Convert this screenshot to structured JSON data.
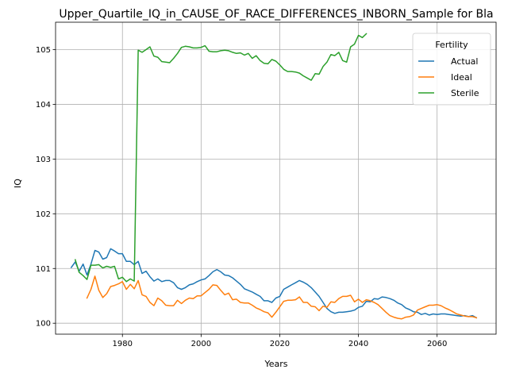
{
  "chart_data": {
    "type": "line",
    "title": "Upper_Quartile_IQ_in_CAUSE_OF_RACE_DIFFERENCES_INBORN_Sample for Bla",
    "xlabel": "Years",
    "ylabel": "IQ",
    "xlim": [
      1963,
      2075
    ],
    "ylim": [
      99.8,
      105.5
    ],
    "xticks": [
      1980,
      2000,
      2020,
      2040,
      2060
    ],
    "yticks": [
      100,
      101,
      102,
      103,
      104,
      105
    ],
    "grid": true,
    "legend": {
      "title": "Fertility",
      "position": "top-right"
    },
    "series": [
      {
        "name": "Actual",
        "color": "#1f77b4",
        "x": [
          1967,
          1968,
          1969,
          1970,
          1971,
          1972,
          1973,
          1974,
          1975,
          1976,
          1977,
          1978,
          1979,
          1980,
          1981,
          1982,
          1983,
          1984,
          1985,
          1986,
          1987,
          1988,
          1989,
          1990,
          1991,
          1992,
          1993,
          1994,
          1995,
          1996,
          1997,
          1998,
          1999,
          2000,
          2001,
          2002,
          2003,
          2004,
          2005,
          2006,
          2007,
          2008,
          2009,
          2010,
          2011,
          2012,
          2013,
          2014,
          2015,
          2016,
          2017,
          2018,
          2019,
          2020,
          2021,
          2022,
          2023,
          2024,
          2025,
          2026,
          2027,
          2028,
          2029,
          2030,
          2031,
          2032,
          2033,
          2034,
          2035,
          2036,
          2037,
          2038,
          2039,
          2040,
          2041,
          2042,
          2043,
          2044,
          2045,
          2046,
          2047,
          2048,
          2049,
          2050,
          2051,
          2052,
          2053,
          2054,
          2055,
          2056,
          2057,
          2058,
          2059,
          2060,
          2061,
          2062,
          2063,
          2064,
          2065,
          2066,
          2067,
          2068,
          2069,
          2070
        ],
        "values": [
          101.02,
          101.12,
          100.95,
          101.08,
          100.88,
          101.08,
          101.33,
          101.3,
          101.17,
          101.2,
          101.36,
          101.32,
          101.27,
          101.27,
          101.13,
          101.13,
          101.07,
          101.13,
          100.91,
          100.95,
          100.85,
          100.77,
          100.81,
          100.76,
          100.78,
          100.78,
          100.74,
          100.65,
          100.62,
          100.65,
          100.7,
          100.72,
          100.76,
          100.79,
          100.81,
          100.87,
          100.94,
          100.98,
          100.94,
          100.88,
          100.87,
          100.83,
          100.77,
          100.71,
          100.63,
          100.6,
          100.57,
          100.53,
          100.49,
          100.41,
          100.41,
          100.38,
          100.46,
          100.49,
          100.62,
          100.66,
          100.7,
          100.74,
          100.78,
          100.75,
          100.71,
          100.65,
          100.57,
          100.49,
          100.38,
          100.27,
          100.21,
          100.18,
          100.2,
          100.2,
          100.21,
          100.22,
          100.24,
          100.29,
          100.31,
          100.4,
          100.39,
          100.45,
          100.44,
          100.48,
          100.47,
          100.45,
          100.42,
          100.37,
          100.34,
          100.28,
          100.25,
          100.21,
          100.2,
          100.16,
          100.18,
          100.15,
          100.17,
          100.16,
          100.17,
          100.17,
          100.16,
          100.15,
          100.14,
          100.13,
          100.14,
          100.12,
          100.14,
          100.1
        ]
      },
      {
        "name": "Ideal",
        "color": "#ff7f0e",
        "x": [
          1971,
          1972,
          1973,
          1974,
          1975,
          1976,
          1977,
          1978,
          1979,
          1980,
          1981,
          1982,
          1983,
          1984,
          1985,
          1986,
          1987,
          1988,
          1989,
          1990,
          1991,
          1992,
          1993,
          1994,
          1995,
          1996,
          1997,
          1998,
          1999,
          2000,
          2001,
          2002,
          2003,
          2004,
          2005,
          2006,
          2007,
          2008,
          2009,
          2010,
          2011,
          2012,
          2013,
          2014,
          2015,
          2016,
          2017,
          2018,
          2019,
          2020,
          2021,
          2022,
          2023,
          2024,
          2025,
          2026,
          2027,
          2028,
          2029,
          2030,
          2031,
          2032,
          2033,
          2034,
          2035,
          2036,
          2037,
          2038,
          2039,
          2040,
          2041,
          2042,
          2043,
          2044,
          2045,
          2046,
          2047,
          2048,
          2049,
          2050,
          2051,
          2052,
          2053,
          2054,
          2055,
          2056,
          2057,
          2058,
          2059,
          2060,
          2061,
          2062,
          2063,
          2064,
          2065,
          2066,
          2067,
          2068,
          2069,
          2070
        ],
        "values": [
          100.46,
          100.62,
          100.86,
          100.6,
          100.47,
          100.54,
          100.67,
          100.69,
          100.72,
          100.76,
          100.62,
          100.71,
          100.63,
          100.78,
          100.52,
          100.49,
          100.38,
          100.32,
          100.46,
          100.41,
          100.33,
          100.32,
          100.32,
          100.42,
          100.36,
          100.42,
          100.46,
          100.45,
          100.5,
          100.5,
          100.56,
          100.62,
          100.7,
          100.69,
          100.6,
          100.52,
          100.55,
          100.43,
          100.44,
          100.38,
          100.37,
          100.37,
          100.33,
          100.28,
          100.25,
          100.21,
          100.19,
          100.11,
          100.2,
          100.3,
          100.4,
          100.42,
          100.42,
          100.43,
          100.48,
          100.38,
          100.38,
          100.31,
          100.3,
          100.23,
          100.31,
          100.29,
          100.39,
          100.38,
          100.45,
          100.49,
          100.49,
          100.51,
          100.39,
          100.44,
          100.38,
          100.43,
          100.41,
          100.38,
          100.34,
          100.27,
          100.2,
          100.14,
          100.11,
          100.09,
          100.08,
          100.11,
          100.12,
          100.15,
          100.24,
          100.27,
          100.3,
          100.33,
          100.33,
          100.34,
          100.32,
          100.28,
          100.25,
          100.21,
          100.17,
          100.15,
          100.13,
          100.12,
          100.12,
          100.1
        ]
      },
      {
        "name": "Sterile",
        "color": "#2ca02c",
        "x": [
          1968,
          1969,
          1970,
          1971,
          1972,
          1973,
          1974,
          1975,
          1976,
          1977,
          1978,
          1979,
          1980,
          1981,
          1982,
          1983,
          1984,
          1985,
          1986,
          1987,
          1988,
          1989,
          1990,
          1991,
          1992,
          1993,
          1994,
          1995,
          1996,
          1997,
          1998,
          1999,
          2000,
          2001,
          2002,
          2003,
          2004,
          2005,
          2006,
          2007,
          2008,
          2009,
          2010,
          2011,
          2012,
          2013,
          2014,
          2015,
          2016,
          2017,
          2018,
          2019,
          2020,
          2021,
          2022,
          2023,
          2024,
          2025,
          2026,
          2027,
          2028,
          2029,
          2030,
          2031,
          2032,
          2033,
          2034,
          2035,
          2036,
          2037,
          2038,
          2039,
          2040,
          2041,
          2042
        ],
        "values": [
          101.16,
          100.93,
          100.87,
          100.8,
          101.06,
          101.06,
          101.07,
          101.01,
          101.04,
          101.02,
          101.04,
          100.81,
          100.84,
          100.76,
          100.81,
          100.77,
          104.99,
          104.95,
          105.0,
          105.05,
          104.88,
          104.86,
          104.78,
          104.77,
          104.76,
          104.84,
          104.93,
          105.04,
          105.06,
          105.05,
          105.03,
          105.03,
          105.04,
          105.07,
          104.97,
          104.96,
          104.96,
          104.98,
          104.99,
          104.98,
          104.95,
          104.93,
          104.94,
          104.9,
          104.93,
          104.84,
          104.89,
          104.8,
          104.75,
          104.74,
          104.82,
          104.79,
          104.72,
          104.64,
          104.6,
          104.6,
          104.59,
          104.57,
          104.52,
          104.48,
          104.44,
          104.56,
          104.55,
          104.69,
          104.77,
          104.91,
          104.89,
          104.95,
          104.8,
          104.77,
          105.05,
          105.1,
          105.26,
          105.22,
          105.29
        ]
      }
    ]
  }
}
